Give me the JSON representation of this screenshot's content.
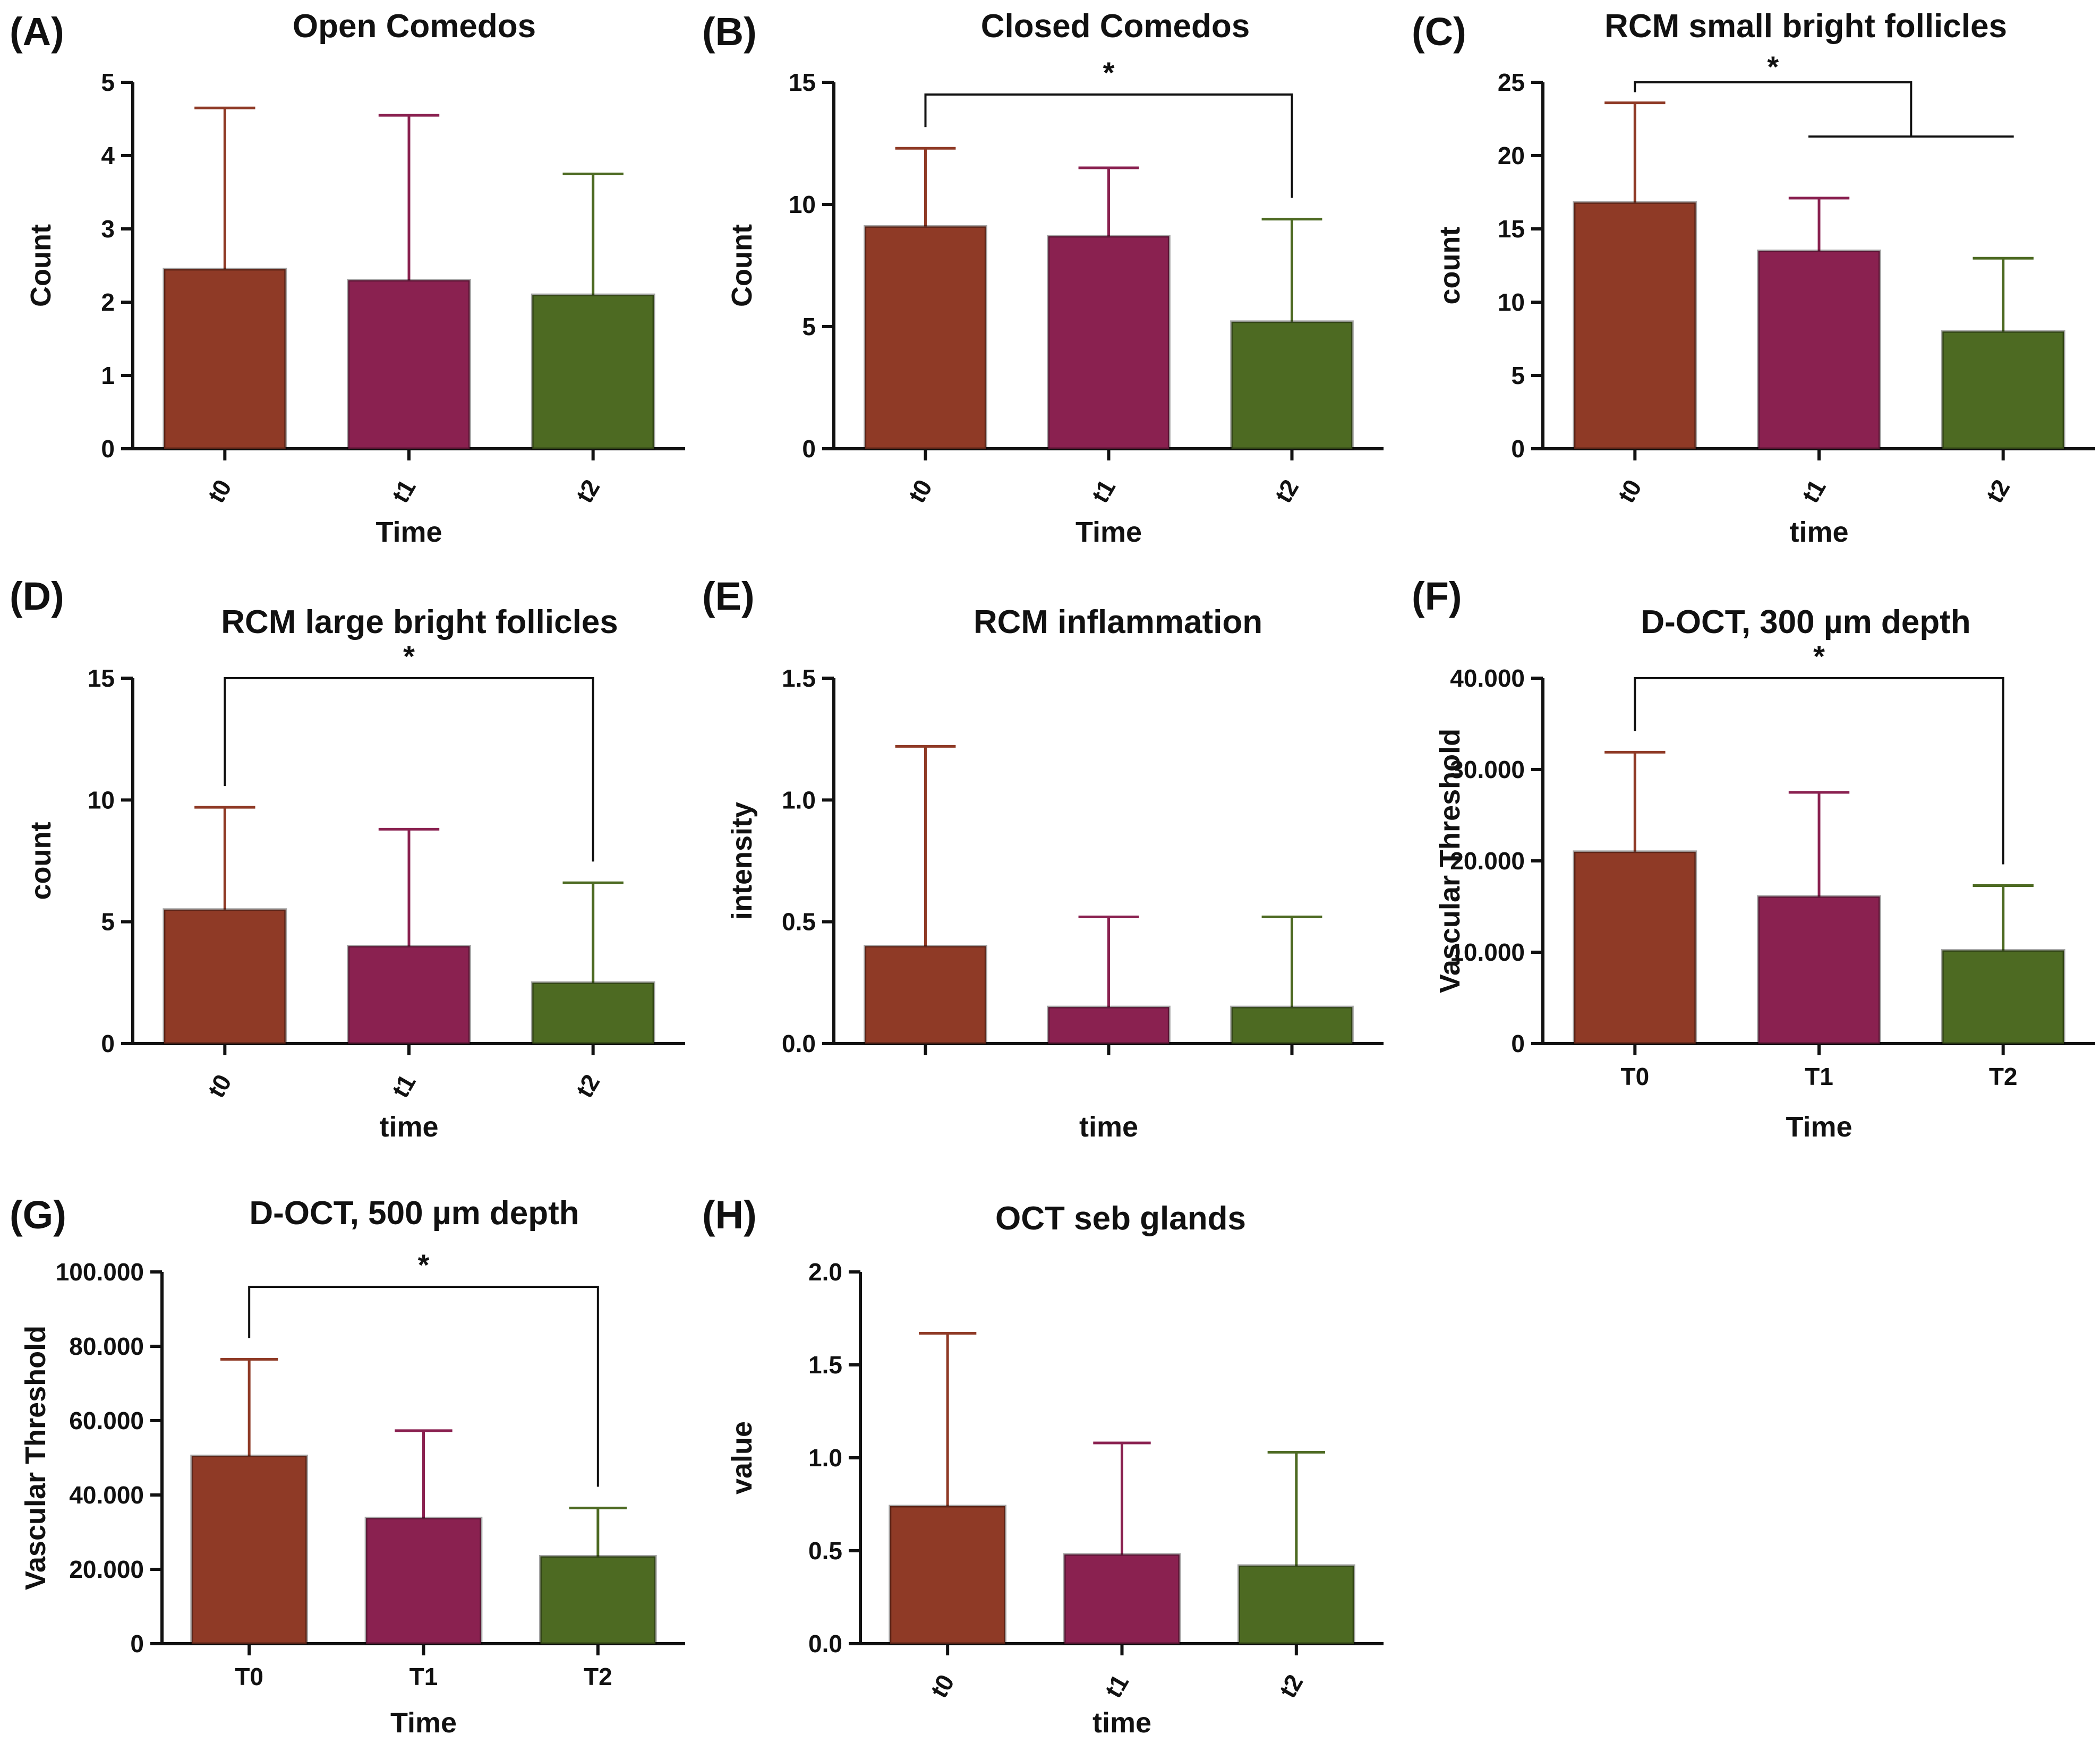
{
  "colors": {
    "t0": "#8f3a26",
    "t1": "#8a2150",
    "t2": "#4d6a22",
    "axis": "#111111"
  },
  "chart_data": [
    {
      "id": "A",
      "letter": "(A)",
      "type": "bar",
      "title": "Open Comedos",
      "xlabel": "Time",
      "ylabel": "Count",
      "categories": [
        "t0",
        "t1",
        "t2"
      ],
      "values": [
        2.45,
        2.3,
        2.1
      ],
      "errors": [
        2.2,
        2.25,
        1.65
      ],
      "ylim": [
        0,
        5
      ],
      "yticks": [
        "0",
        "1",
        "2",
        "3",
        "4",
        "5"
      ],
      "tick_rotate": true,
      "significance": []
    },
    {
      "id": "B",
      "letter": "(B)",
      "type": "bar",
      "title": "Closed Comedos",
      "xlabel": "Time",
      "ylabel": "Count",
      "categories": [
        "t0",
        "t1",
        "t2"
      ],
      "values": [
        9.1,
        8.7,
        5.2
      ],
      "errors": [
        3.2,
        2.8,
        4.2
      ],
      "ylim": [
        0,
        15
      ],
      "yticks": [
        "0",
        "5",
        "10",
        "15"
      ],
      "tick_rotate": true,
      "significance": [
        {
          "label": "*",
          "style": "bracket",
          "from": 0,
          "to": 2,
          "y": 14.5
        }
      ]
    },
    {
      "id": "C",
      "letter": "(C)",
      "type": "bar",
      "title": "RCM small bright follicles",
      "xlabel": "time",
      "ylabel": "count",
      "categories": [
        "t0",
        "t1",
        "t2"
      ],
      "values": [
        16.8,
        13.5,
        8.0
      ],
      "errors": [
        6.8,
        3.6,
        5.0
      ],
      "ylim": [
        0,
        25
      ],
      "yticks": [
        "0",
        "5",
        "10",
        "15",
        "20",
        "25"
      ],
      "tick_rotate": true,
      "significance": [
        {
          "label": "*",
          "style": "branch",
          "from": 0,
          "to": 2,
          "y": 25.0,
          "y2": 21.3
        }
      ]
    },
    {
      "id": "D",
      "letter": "(D)",
      "type": "bar",
      "title": "RCM large bright follicles",
      "xlabel": "time",
      "ylabel": "count",
      "categories": [
        "t0",
        "t1",
        "t2"
      ],
      "values": [
        5.5,
        4.0,
        2.5
      ],
      "errors": [
        4.2,
        4.8,
        4.1
      ],
      "ylim": [
        0,
        15
      ],
      "yticks": [
        "0",
        "5",
        "10",
        "15"
      ],
      "tick_rotate": true,
      "significance": [
        {
          "label": "*",
          "style": "bracket",
          "from": 0,
          "to": 2,
          "y": 15.0
        }
      ]
    },
    {
      "id": "E",
      "letter": "(E)",
      "type": "bar",
      "title": "RCM inflammation",
      "xlabel": "time",
      "ylabel": "intensity",
      "categories": [
        "",
        "",
        ""
      ],
      "values": [
        0.4,
        0.15,
        0.15
      ],
      "errors": [
        0.82,
        0.37,
        0.37
      ],
      "ylim": [
        0,
        1.5
      ],
      "yticks": [
        "0.0",
        "0.5",
        "1.0",
        "1.5"
      ],
      "tick_rotate": false,
      "significance": []
    },
    {
      "id": "F",
      "letter": "(F)",
      "type": "bar",
      "title": "D-OCT, 300 µm depth",
      "xlabel": "Time",
      "ylabel": "Vascular Threshold",
      "categories": [
        "T0",
        "T1",
        "T2"
      ],
      "values": [
        21000,
        16100,
        10200
      ],
      "errors": [
        10900,
        11400,
        7100
      ],
      "ylim": [
        0,
        40000
      ],
      "yticks": [
        "0",
        "10.000",
        "20.000",
        "30.000",
        "40.000"
      ],
      "tick_rotate": false,
      "significance": [
        {
          "label": "*",
          "style": "bracket",
          "from": 0,
          "to": 2,
          "y": 40000
        }
      ]
    },
    {
      "id": "G",
      "letter": "(G)",
      "type": "bar",
      "title": "D-OCT, 500 µm depth",
      "xlabel": "Time",
      "ylabel": "Vascular Threshold",
      "categories": [
        "T0",
        "T1",
        "T2"
      ],
      "values": [
        50500,
        33800,
        23500
      ],
      "errors": [
        26000,
        23500,
        13000
      ],
      "ylim": [
        0,
        100000
      ],
      "yticks": [
        "0",
        "20.000",
        "40.000",
        "60.000",
        "80.000",
        "100.000"
      ],
      "tick_rotate": false,
      "significance": [
        {
          "label": "*",
          "style": "bracket",
          "from": 0,
          "to": 2,
          "y": 96000
        }
      ]
    },
    {
      "id": "H",
      "letter": "(H)",
      "type": "bar",
      "title": "OCT seb glands",
      "xlabel": "time",
      "ylabel": "value",
      "categories": [
        "t0",
        "t1",
        "t2"
      ],
      "values": [
        0.74,
        0.48,
        0.42
      ],
      "errors": [
        0.93,
        0.6,
        0.61
      ],
      "ylim": [
        0,
        2.0
      ],
      "yticks": [
        "0.0",
        "0.5",
        "1.0",
        "1.5",
        "2.0"
      ],
      "tick_rotate": true,
      "significance": []
    }
  ]
}
